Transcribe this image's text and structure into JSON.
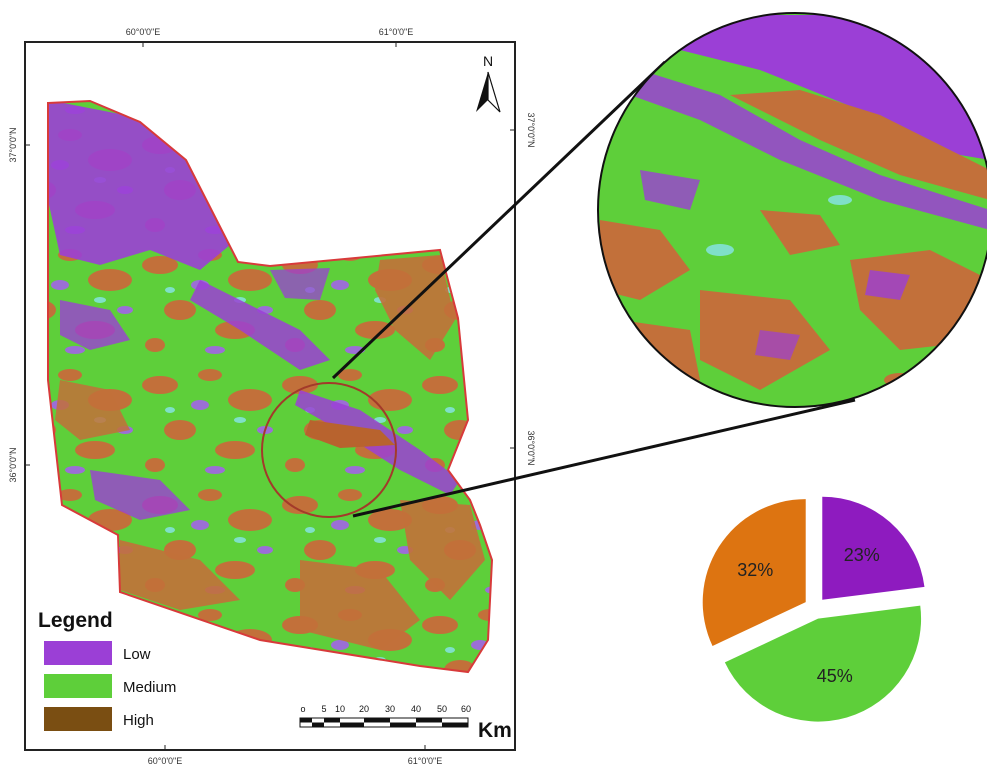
{
  "map": {
    "coords": {
      "top_left": "60°0'0\"E",
      "top_right": "61°0'0\"E",
      "bottom_left": "60°0'0\"E",
      "bottom_right": "61°0'0\"E",
      "left_top": "37°0'0\"N",
      "left_bottom": "36°0'0\"N",
      "right_top": "37°0'0\"N",
      "right_bottom": "36°0'0\"N"
    },
    "north": "N",
    "legend": {
      "title": "Legend",
      "items": [
        {
          "label": "Low",
          "color": "#9b3fd6"
        },
        {
          "label": "Medium",
          "color": "#5ecf3a"
        },
        {
          "label": "High",
          "color": "#7a4e12"
        }
      ]
    },
    "scale_bar": {
      "ticks": [
        "o",
        "5",
        "10",
        "20",
        "30",
        "40",
        "50",
        "60"
      ],
      "unit": "Km"
    },
    "colors": {
      "low": "#9b3fd6",
      "medium": "#5ecf3a",
      "high": "#c2703a",
      "boundary": "#d83a3a"
    }
  },
  "chart_data": {
    "type": "pie",
    "slices": [
      {
        "label": "23%",
        "value": 23,
        "color": "#8e1bbf"
      },
      {
        "label": "45%",
        "value": 45,
        "color": "#5ecf3a"
      },
      {
        "label": "32%",
        "value": 32,
        "color": "#dd7411"
      }
    ]
  }
}
